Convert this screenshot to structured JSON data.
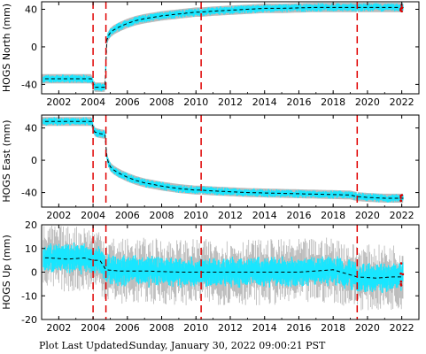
{
  "colors": {
    "observations": "#19e6ff",
    "error_bars": "#b4b4b4",
    "model_line": "#000000",
    "event_lines": "#e00000",
    "outliers": "#dd0000"
  },
  "footer": {
    "label": "Plot Last Updated:",
    "timestamp": "Sunday, January 30, 2022 09:00:21 PST"
  },
  "chart_data": [
    {
      "type": "scatter",
      "ylabel": "HOGS North (mm)",
      "xlim": [
        2001.0,
        2023.0
      ],
      "ylim": [
        -50,
        48
      ],
      "yticks": [
        -40,
        0,
        40
      ],
      "xticks": [
        "2002",
        "2004",
        "2006",
        "2008",
        "2010",
        "2012",
        "2014",
        "2016",
        "2018",
        "2020",
        "2022"
      ],
      "event_lines_x": [
        2004.0,
        2004.75,
        2010.3,
        2019.4
      ],
      "grid": false,
      "series": [
        {
          "x": [
            2001.5,
            2002.0,
            2002.5,
            2003.0,
            2003.5,
            2003.9,
            2004.1,
            2004.4,
            2004.7,
            2004.8,
            2004.9,
            2005.0,
            2005.2,
            2005.5,
            2006.0,
            2006.5,
            2007.0,
            2008.0,
            2009.0,
            2010.0,
            2010.3,
            2011.0,
            2012.0,
            2013.0,
            2014.0,
            2015.0,
            2016.0,
            2017.0,
            2018.0,
            2019.0,
            2019.4,
            2020.0,
            2020.5,
            2021.0,
            2021.5,
            2022.0
          ],
          "y": [
            -34,
            -34,
            -34,
            -34,
            -34,
            -34,
            -43,
            -43,
            -43,
            7,
            12,
            15,
            18,
            21,
            25,
            28,
            30,
            33,
            35,
            37,
            37,
            38,
            39,
            40,
            41,
            41,
            41.5,
            42,
            42,
            42,
            42,
            42,
            42,
            42,
            42,
            42
          ]
        }
      ],
      "band_halfwidth": 3.5
    },
    {
      "type": "scatter",
      "ylabel": "HOGS East (mm)",
      "xlim": [
        2001.0,
        2023.0
      ],
      "ylim": [
        -58,
        56
      ],
      "yticks": [
        -40,
        0,
        40
      ],
      "xticks": [
        "2002",
        "2004",
        "2006",
        "2008",
        "2010",
        "2012",
        "2014",
        "2016",
        "2018",
        "2020",
        "2022"
      ],
      "event_lines_x": [
        2004.0,
        2004.75,
        2010.3,
        2019.4
      ],
      "grid": false,
      "series": [
        {
          "x": [
            2001.5,
            2002.0,
            2002.5,
            2003.0,
            2003.5,
            2003.9,
            2004.1,
            2004.4,
            2004.7,
            2004.8,
            2004.9,
            2005.0,
            2005.2,
            2005.5,
            2006.0,
            2006.5,
            2007.0,
            2008.0,
            2009.0,
            2010.0,
            2010.3,
            2011.0,
            2012.0,
            2013.0,
            2014.0,
            2015.0,
            2016.0,
            2017.0,
            2018.0,
            2019.0,
            2019.4,
            2020.0,
            2020.5,
            2021.0,
            2021.5,
            2022.0
          ],
          "y": [
            48,
            48,
            48,
            48,
            48,
            48,
            35,
            33,
            32,
            4,
            -3,
            -8,
            -12,
            -16,
            -21,
            -25,
            -28,
            -32,
            -35,
            -37,
            -37,
            -38,
            -39,
            -40,
            -40.5,
            -41,
            -41.5,
            -42,
            -42.5,
            -43,
            -45,
            -46,
            -46.5,
            -47,
            -47,
            -47
          ]
        }
      ],
      "band_halfwidth": 4
    },
    {
      "type": "scatter",
      "ylabel": "HOGS Up (mm)",
      "xlim": [
        2001.0,
        2023.0
      ],
      "ylim": [
        -20,
        20
      ],
      "yticks": [
        -20,
        -10,
        0,
        10,
        20
      ],
      "xticks": [
        "2002",
        "2004",
        "2006",
        "2008",
        "2010",
        "2012",
        "2014",
        "2016",
        "2018",
        "2020",
        "2022"
      ],
      "event_lines_x": [
        2004.0,
        2004.75,
        2010.3,
        2019.4
      ],
      "grid": false,
      "series": [
        {
          "x": [
            2001.5,
            2002.5,
            2003.5,
            2004.0,
            2004.4,
            2004.75,
            2005.5,
            2007.0,
            2009.0,
            2010.3,
            2012.0,
            2014.0,
            2016.0,
            2018.0,
            2019.4,
            2020.5,
            2021.5,
            2022.0
          ],
          "y": [
            6,
            5.5,
            6,
            5,
            5,
            1,
            0.5,
            0.5,
            0,
            0,
            0,
            0,
            0,
            1,
            -2,
            -2.5,
            -2,
            -2
          ]
        }
      ],
      "band_halfwidth": 5,
      "error_halfwidth": 9
    }
  ]
}
